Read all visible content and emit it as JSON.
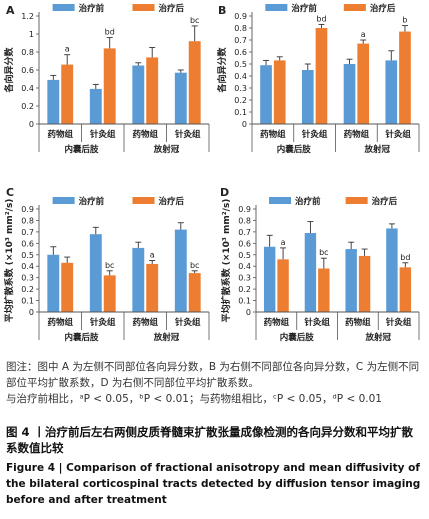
{
  "colors": {
    "before": "#5b9bd5",
    "after": "#ed7d31",
    "axis": "#555555"
  },
  "legend": {
    "before": "治疗前",
    "after": "治疗后"
  },
  "chart_data": [
    {
      "type": "bar",
      "panel": "A",
      "ylabel": "各向异分数",
      "ylim": [
        0,
        1.2
      ],
      "yticks": [
        "0",
        "0.2",
        "0.4",
        "0.6",
        "0.8",
        "1",
        "1.2"
      ],
      "categories": [
        "药物组",
        "针灸组",
        "药物组",
        "针灸组"
      ],
      "groups": [
        "内囊后肢",
        "放射冠"
      ],
      "series": [
        {
          "name": "治疗前",
          "values": [
            0.49,
            0.39,
            0.65,
            0.57
          ],
          "errors": [
            0.05,
            0.05,
            0.03,
            0.03
          ],
          "labels": [
            "",
            "",
            "",
            ""
          ]
        },
        {
          "name": "治疗后",
          "values": [
            0.66,
            0.84,
            0.74,
            0.92
          ],
          "errors": [
            0.11,
            0.12,
            0.11,
            0.17
          ],
          "labels": [
            "a",
            "bd",
            "",
            "bc"
          ]
        }
      ]
    },
    {
      "type": "bar",
      "panel": "B",
      "ylabel": "各向异分数",
      "ylim": [
        0,
        0.9
      ],
      "yticks": [
        "0",
        "0.1",
        "0.2",
        "0.3",
        "0.4",
        "0.5",
        "0.6",
        "0.7",
        "0.8",
        "0.9"
      ],
      "categories": [
        "药物组",
        "针灸组",
        "药物组",
        "针灸组"
      ],
      "groups": [
        "内囊后肢",
        "放射冠"
      ],
      "series": [
        {
          "name": "治疗前",
          "values": [
            0.49,
            0.45,
            0.5,
            0.53
          ],
          "errors": [
            0.04,
            0.05,
            0.04,
            0.08
          ],
          "labels": [
            "",
            "",
            "",
            ""
          ]
        },
        {
          "name": "治疗后",
          "values": [
            0.53,
            0.8,
            0.67,
            0.77
          ],
          "errors": [
            0.03,
            0.03,
            0.03,
            0.05
          ],
          "labels": [
            "",
            "bd",
            "a",
            "b"
          ]
        }
      ]
    },
    {
      "type": "bar",
      "panel": "C",
      "ylabel": "平均扩散系数 (×10³ mm²/s)",
      "ylim": [
        0,
        0.9
      ],
      "yticks": [
        "0",
        "0.1",
        "0.2",
        "0.3",
        "0.4",
        "0.5",
        "0.6",
        "0.7",
        "0.8",
        "0.9"
      ],
      "categories": [
        "药物组",
        "针灸组",
        "药物组",
        "针灸组"
      ],
      "groups": [
        "内囊后肢",
        "放射冠"
      ],
      "series": [
        {
          "name": "治疗前",
          "values": [
            0.5,
            0.68,
            0.56,
            0.72
          ],
          "errors": [
            0.07,
            0.06,
            0.05,
            0.06
          ],
          "labels": [
            "",
            "",
            "",
            ""
          ]
        },
        {
          "name": "治疗后",
          "values": [
            0.43,
            0.32,
            0.42,
            0.34
          ],
          "errors": [
            0.05,
            0.04,
            0.03,
            0.02
          ],
          "labels": [
            "",
            "bc",
            "a",
            "bc"
          ]
        }
      ]
    },
    {
      "type": "bar",
      "panel": "D",
      "ylabel": "平均扩散系数 (×10³ mm²/s)",
      "ylim": [
        0,
        0.9
      ],
      "yticks": [
        "0",
        "0.1",
        "0.2",
        "0.3",
        "0.4",
        "0.5",
        "0.6",
        "0.7",
        "0.8",
        "0.9"
      ],
      "categories": [
        "药物组",
        "针灸组",
        "药物组",
        "针灸组"
      ],
      "groups": [
        "内囊后肢",
        "放射冠"
      ],
      "series": [
        {
          "name": "治疗前",
          "values": [
            0.57,
            0.69,
            0.55,
            0.73
          ],
          "errors": [
            0.1,
            0.1,
            0.06,
            0.04
          ],
          "labels": [
            "",
            "",
            "",
            ""
          ]
        },
        {
          "name": "治疗后",
          "values": [
            0.46,
            0.38,
            0.49,
            0.39
          ],
          "errors": [
            0.1,
            0.09,
            0.06,
            0.04
          ],
          "labels": [
            "a",
            "bc",
            "",
            "bd"
          ]
        }
      ]
    }
  ],
  "caption": {
    "note1": "图注：图中 A 为左侧不同部位各向异分数，B 为右侧不同部位各向异分数，C 为左侧不同部位平均扩散系数，D 为右侧不同部位平均扩散系数。",
    "note2": "与治疗前相比，ᵃP < 0.05，ᵇP < 0.01；与药物组相比，ᶜP < 0.05，ᵈP < 0.01",
    "title_cn": "图 4 丨治疗前后左右两侧皮质脊髓束扩散张量成像检测的各向异分数和平均扩散系数值比较",
    "title_en": "Figure 4 | Comparison of fractional anisotropy and mean diffusivity of the bilateral corticospinal tracts detected by diffusion tensor imaging before and after treatment"
  }
}
